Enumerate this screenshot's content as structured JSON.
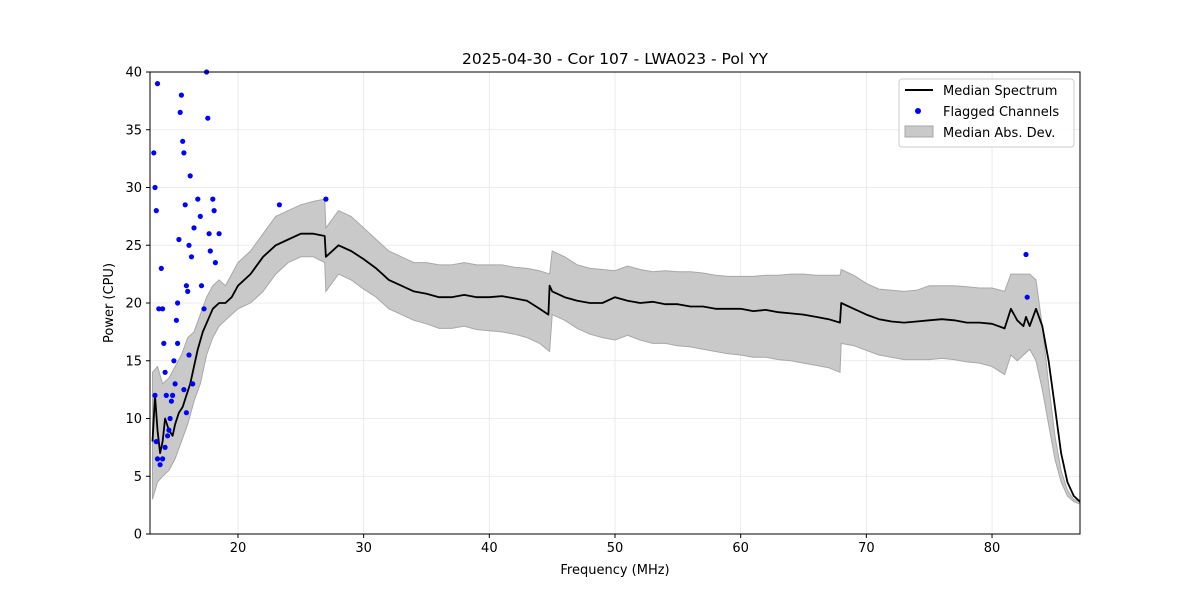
{
  "chart_data": {
    "type": "line",
    "title": "2025-04-30 - Cor 107 - LWA023 - Pol YY",
    "xlabel": "Frequency (MHz)",
    "ylabel": "Power (CPU)",
    "xlim": [
      13,
      87
    ],
    "ylim": [
      0,
      40
    ],
    "xticks": [
      20,
      30,
      40,
      50,
      60,
      70,
      80
    ],
    "yticks": [
      0,
      5,
      10,
      15,
      20,
      25,
      30,
      35,
      40
    ],
    "grid": true,
    "legend_position": "top-right",
    "legend": [
      "Median Spectrum",
      "Flagged Channels",
      "Median Abs. Dev."
    ],
    "colors": {
      "median": "#000000",
      "flagged": "#0000ff",
      "band": "#c9c9c9",
      "band_edge": "#a8a8a8"
    },
    "series": [
      {
        "name": "Median Spectrum",
        "x": [
          13.2,
          13.4,
          13.6,
          13.8,
          14.0,
          14.2,
          14.5,
          14.8,
          15.0,
          15.3,
          15.6,
          15.9,
          16.2,
          16.5,
          16.8,
          17.2,
          17.6,
          18.0,
          18.5,
          19.0,
          19.5,
          20.0,
          21.0,
          22.0,
          23.0,
          24.0,
          25.0,
          26.0,
          26.9,
          27.0,
          28.0,
          29.0,
          30.0,
          31.0,
          32.0,
          33.0,
          34.0,
          35.0,
          36.0,
          37.0,
          38.0,
          39.0,
          40.0,
          41.0,
          42.0,
          43.0,
          44.0,
          44.7,
          44.8,
          45.0,
          46.0,
          47.0,
          48.0,
          49.0,
          50.0,
          51.0,
          52.0,
          53.0,
          54.0,
          55.0,
          56.0,
          57.0,
          58.0,
          59.0,
          60.0,
          61.0,
          62.0,
          63.0,
          64.0,
          65.0,
          66.0,
          67.0,
          67.9,
          68.0,
          69.0,
          70.0,
          71.0,
          72.0,
          73.0,
          74.0,
          75.0,
          76.0,
          77.0,
          78.0,
          79.0,
          80.0,
          81.0,
          81.5,
          82.0,
          82.5,
          82.7,
          83.0,
          83.5,
          84.0,
          84.5,
          85.0,
          85.5,
          86.0,
          86.5,
          87.0
        ],
        "values": [
          8,
          12,
          9,
          7,
          8,
          10,
          9,
          8.5,
          9.5,
          10.5,
          11,
          12,
          13,
          14.5,
          16,
          17.5,
          18.5,
          19.5,
          20,
          20,
          20.5,
          21.5,
          22.5,
          24,
          25,
          25.5,
          26,
          26,
          25.8,
          24,
          25,
          24.5,
          23.8,
          23,
          22,
          21.5,
          21,
          20.8,
          20.5,
          20.5,
          20.7,
          20.5,
          20.5,
          20.6,
          20.4,
          20.2,
          19.5,
          19.0,
          21.5,
          21,
          20.5,
          20.2,
          20,
          20,
          20.5,
          20.2,
          20,
          20.1,
          19.9,
          19.9,
          19.7,
          19.7,
          19.5,
          19.5,
          19.5,
          19.3,
          19.4,
          19.2,
          19.1,
          19.0,
          18.8,
          18.6,
          18.3,
          20,
          19.5,
          19.0,
          18.6,
          18.4,
          18.3,
          18.4,
          18.5,
          18.6,
          18.5,
          18.3,
          18.3,
          18.2,
          17.8,
          19.5,
          18.5,
          18.0,
          18.8,
          18.0,
          19.5,
          18.0,
          15.0,
          11.0,
          7.0,
          4.5,
          3.3,
          2.8
        ]
      },
      {
        "name": "Median Abs. Dev.",
        "x": [
          13.2,
          13.6,
          14.0,
          14.5,
          15.0,
          15.5,
          16.0,
          16.5,
          17.0,
          17.5,
          18.0,
          18.5,
          19.0,
          20.0,
          21.0,
          22.0,
          23.0,
          24.0,
          25.0,
          26.0,
          26.9,
          27.0,
          28.0,
          29.0,
          30.0,
          31.0,
          32.0,
          33.0,
          34.0,
          35.0,
          36.0,
          37.0,
          38.0,
          39.0,
          40.0,
          41.0,
          42.0,
          43.0,
          44.0,
          44.8,
          45.0,
          46.0,
          47.0,
          48.0,
          49.0,
          50.0,
          51.0,
          52.0,
          53.0,
          54.0,
          55.0,
          56.0,
          57.0,
          58.0,
          59.0,
          60.0,
          61.0,
          62.0,
          63.0,
          64.0,
          65.0,
          66.0,
          67.0,
          67.9,
          68.0,
          69.0,
          70.0,
          71.0,
          72.0,
          73.0,
          74.0,
          75.0,
          76.0,
          77.0,
          78.0,
          79.0,
          80.0,
          81.0,
          81.5,
          82.0,
          83.0,
          83.5,
          84.0,
          84.5,
          85.0,
          85.5,
          86.0,
          86.5,
          87.0
        ],
        "lower": [
          3.0,
          4.5,
          5.0,
          5.5,
          6.5,
          8.0,
          9.5,
          11.5,
          13.0,
          15.5,
          17.0,
          18.0,
          18.5,
          19.5,
          20.0,
          21.0,
          22.5,
          23.5,
          24.0,
          24.0,
          23.5,
          21.0,
          22.5,
          22.0,
          21.2,
          20.5,
          19.5,
          19.0,
          18.5,
          18.2,
          17.8,
          17.8,
          18.0,
          17.7,
          17.6,
          17.5,
          17.3,
          17.0,
          16.5,
          15.8,
          19.0,
          18.5,
          17.8,
          17.3,
          17.0,
          16.8,
          17.2,
          16.8,
          16.5,
          16.5,
          16.3,
          16.2,
          16.0,
          15.8,
          15.6,
          15.5,
          15.3,
          15.3,
          15.1,
          15.0,
          14.8,
          14.6,
          14.4,
          14.0,
          16.5,
          16.3,
          15.9,
          15.5,
          15.3,
          15.1,
          15.1,
          15.1,
          15.2,
          15.1,
          14.9,
          14.8,
          14.5,
          13.8,
          15.5,
          15.0,
          16.0,
          15.0,
          12.5,
          9.5,
          6.5,
          4.5,
          3.3,
          2.8,
          2.6
        ],
        "upper": [
          14.0,
          14.5,
          13.0,
          13.5,
          14.5,
          15.5,
          17.0,
          17.5,
          19.0,
          20.5,
          21.5,
          22.0,
          21.5,
          23.5,
          24.5,
          26.0,
          27.5,
          28.0,
          28.5,
          28.8,
          29.0,
          26.5,
          28.0,
          27.5,
          26.5,
          25.5,
          24.5,
          24.0,
          23.5,
          23.5,
          23.3,
          23.3,
          23.5,
          23.3,
          23.3,
          23.3,
          23.1,
          23.0,
          22.8,
          22.5,
          24.5,
          24.0,
          23.3,
          23.0,
          22.9,
          22.8,
          23.2,
          22.9,
          22.7,
          22.8,
          22.7,
          22.7,
          22.6,
          22.4,
          22.3,
          22.3,
          22.3,
          22.4,
          22.4,
          22.5,
          22.5,
          22.4,
          22.4,
          22.4,
          22.9,
          22.4,
          21.7,
          21.2,
          21.1,
          21.0,
          21.1,
          21.5,
          21.5,
          21.5,
          21.4,
          21.3,
          21.3,
          21.0,
          22.5,
          22.5,
          22.5,
          22.0,
          18.0,
          13.0,
          8.5,
          5.5,
          3.8,
          3.0,
          2.8
        ]
      },
      {
        "name": "Flagged Channels",
        "x": [
          13.3,
          13.4,
          13.5,
          13.6,
          13.7,
          13.9,
          14.0,
          14.1,
          14.2,
          14.3,
          13.4,
          13.5,
          13.6,
          13.8,
          14.0,
          14.2,
          14.4,
          14.6,
          14.8,
          15.0,
          15.1,
          15.2,
          15.3,
          15.4,
          15.5,
          15.6,
          15.7,
          15.8,
          15.9,
          16.0,
          16.1,
          16.2,
          16.3,
          16.5,
          16.8,
          17.0,
          17.1,
          17.3,
          17.5,
          17.6,
          17.7,
          17.8,
          18.0,
          18.1,
          18.2,
          18.5,
          23.3,
          27.0,
          82.7,
          82.8,
          14.5,
          14.7,
          14.9,
          15.2,
          15.7,
          15.9,
          16.1,
          16.4
        ],
        "values": [
          33,
          30,
          28,
          39,
          19.5,
          23,
          19.5,
          16.5,
          14,
          12,
          12,
          8,
          6.5,
          6,
          6.5,
          7.5,
          8.5,
          10,
          12,
          13,
          18.5,
          20,
          25.5,
          36.5,
          38,
          34,
          33,
          28.5,
          21.5,
          21,
          25,
          31,
          24,
          26.5,
          29,
          27.5,
          21.5,
          19.5,
          40,
          36,
          26,
          24.5,
          29,
          28,
          23.5,
          26,
          28.5,
          29,
          24.2,
          20.5,
          9,
          11.5,
          15,
          16.5,
          12.5,
          10.5,
          15.5,
          13
        ]
      }
    ]
  }
}
